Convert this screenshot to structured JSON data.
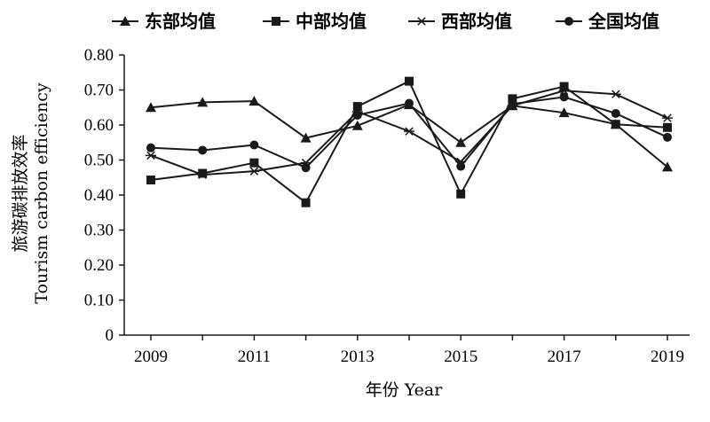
{
  "chart_data": {
    "type": "line",
    "title": "",
    "xlabel": "年份 Year",
    "ylabel_line1": "旅游碳排放效率",
    "ylabel_line2": "Tourism carbon efficiency",
    "x": [
      2009,
      2010,
      2011,
      2012,
      2013,
      2014,
      2015,
      2016,
      2017,
      2018,
      2019
    ],
    "x_tick_labels": [
      "2009",
      "2011",
      "2013",
      "2015",
      "2017",
      "2019"
    ],
    "x_tick_values": [
      2009,
      2011,
      2013,
      2015,
      2017,
      2019
    ],
    "xlim": [
      2009,
      2019
    ],
    "ylim": [
      0,
      0.8
    ],
    "y_ticks": [
      0,
      0.1,
      0.2,
      0.3,
      0.4,
      0.5,
      0.6,
      0.7,
      0.8
    ],
    "y_tick_labels": [
      "0",
      "0.10",
      "0.20",
      "0.30",
      "0.40",
      "0.50",
      "0.60",
      "0.70",
      "0.80"
    ],
    "grid": false,
    "legend_position": "top",
    "line_color": "#1a1a1a",
    "series": [
      {
        "name": "东部均值",
        "marker": "triangle",
        "values": [
          0.65,
          0.665,
          0.668,
          0.563,
          0.598,
          0.658,
          0.55,
          0.655,
          0.635,
          0.602,
          0.48
        ]
      },
      {
        "name": "中部均值",
        "marker": "square",
        "values": [
          0.443,
          0.462,
          0.492,
          0.378,
          0.653,
          0.725,
          0.403,
          0.675,
          0.71,
          0.602,
          0.593
        ]
      },
      {
        "name": "西部均值",
        "marker": "asterisk",
        "values": [
          0.513,
          0.458,
          0.468,
          0.492,
          0.638,
          0.582,
          0.495,
          0.655,
          0.698,
          0.688,
          0.62
        ]
      },
      {
        "name": "全国均值",
        "marker": "circle",
        "values": [
          0.535,
          0.528,
          0.543,
          0.478,
          0.628,
          0.662,
          0.482,
          0.66,
          0.68,
          0.633,
          0.565
        ]
      }
    ]
  }
}
